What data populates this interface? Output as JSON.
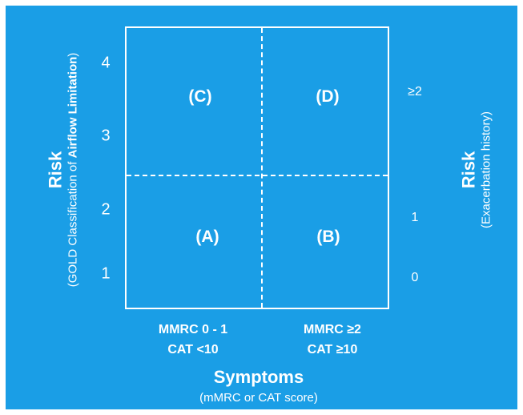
{
  "quadrants": {
    "c": "(C)",
    "d": "(D)",
    "a": "(A)",
    "b": "(B)"
  },
  "left_axis": {
    "title": "Risk",
    "subtitle_pre": "(GOLD Classification of ",
    "subtitle_bold": "Airflow Limitation",
    "subtitle_post": ")",
    "ticks": [
      "4",
      "3",
      "2",
      "1"
    ]
  },
  "right_axis": {
    "title": "Risk",
    "subtitle": "(Exacerbation history)",
    "ticks": [
      "≥2",
      "1",
      "0"
    ]
  },
  "bottom_axis": {
    "title": "Symptoms",
    "subtitle": "(mMRC or CAT score)",
    "left_col": {
      "line1": "MMRC 0 - 1",
      "line2": "CAT <10"
    },
    "right_col": {
      "line1": "MMRC ≥2",
      "line2": "CAT ≥10"
    }
  },
  "colors": {
    "background": "#1a9ee6",
    "foreground": "#ffffff"
  }
}
